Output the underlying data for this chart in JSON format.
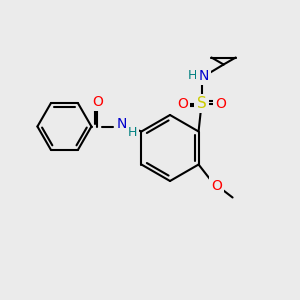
{
  "background_color": "#ebebeb",
  "bond_color": "#000000",
  "lw": 1.5,
  "colors": {
    "O": "#ff0000",
    "N": "#0000cd",
    "S": "#cccc00",
    "H": "#008080",
    "C": "#000000"
  },
  "font_size": 10,
  "font_size_small": 9
}
